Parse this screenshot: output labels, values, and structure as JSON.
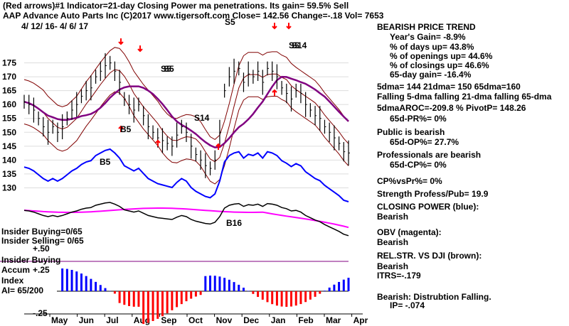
{
  "header": {
    "line1": "(Red arrows)#1 Indicator=21-day Closing Power ma penetrations. Its gain= 59.5% Sell",
    "line2": "AAP Advance Auto Parts Inc (C)2017 www.tigersoft.com Close= 142.56 Change=-.18 Vol= 7653",
    "line3": "4/ 12/ 16- 4/ 6/ 17"
  },
  "insider": {
    "buying_lbl": "Insider Buying=0/65",
    "selling_lbl": "Insider Selling= 0/65",
    "plus50": "+.50",
    "buying2": "Insider Buying",
    "accum": "Accum",
    "plus25": "+.25",
    "index": "Index",
    "ai": "AI= 65/200",
    "minus25": "-.25"
  },
  "panel": {
    "bearish_title": "BEARISH PRICE TREND",
    "years_gain": "Year's Gain= -8.9%",
    "days_up": "% of days up= 43.8%",
    "openings_up": "% of openings up= 44.6%",
    "closings_up": "% of closings up= 46.6%",
    "gain65": "65-day gain= -16.4%",
    "dma": "5dma= 144 21dma= 150 65dma=160",
    "falling": "Falling 5-dma falling 21-dma falling 65-dma",
    "aroc": "5dmaAROC=-209.8 % PivotP= 148.26",
    "pr65": "65d-PR%= 0%",
    "public": "Public is bearish",
    "op65": "65d-OP%= 27.7%",
    "professionals": "Professionals are bearish",
    "cp65": "65d-CP%= 0%",
    "cpvspr": "CP%vsPr%= 0%",
    "strength": "Strength Profess/Pub= 19.9",
    "cp_label": "CLOSING POWER (blue):",
    "cp_val": "Bearish",
    "obv_label": "OBV (magenta):",
    "obv_val": "Bearish",
    "relstr_label": "REL.STR. VS DJI (brown):",
    "relstr_val": "Bearish",
    "itrs": "ITRS=-.179",
    "dist": "Bearish: Distrubtion Falling.",
    "ip": "IP= -.074"
  },
  "chart_data": {
    "type": "line",
    "title": "AAP Advance Auto Parts Inc",
    "ylim": [
      125,
      180
    ],
    "y_ticks": [
      "175",
      "170",
      "165",
      "160",
      "155",
      "150",
      "145",
      "140",
      "135",
      "130"
    ],
    "months": [
      "May",
      "Jun",
      "Jul",
      "Aug",
      "Sep",
      "Oct",
      "Nov",
      "Dec",
      "Jan",
      "Feb",
      "Mar",
      "Apr"
    ],
    "price_close": [
      161,
      160,
      158,
      155,
      152,
      150,
      152,
      150,
      152,
      155,
      158,
      160,
      163,
      165,
      166,
      170,
      172,
      174,
      175,
      172,
      168,
      162,
      160,
      158,
      160,
      156,
      152,
      150,
      148,
      147,
      146,
      145,
      149,
      152,
      150,
      145,
      142,
      140,
      138,
      137,
      140,
      150,
      165,
      170,
      172,
      173,
      168,
      171,
      170,
      172,
      168,
      173,
      172,
      170,
      166,
      164,
      162,
      165,
      164,
      160,
      158,
      156,
      155,
      152,
      150,
      148,
      146,
      143,
      142.56
    ],
    "signals": [
      "S5",
      "B5",
      "S5",
      "S14",
      "B5",
      "S5",
      "B16",
      "S5",
      "S14"
    ],
    "closing_power": "falling",
    "obv": "falling",
    "rel_str": "falling",
    "accum_index_ai": "65/200",
    "close": 142.56
  },
  "colors": {
    "price": "#000000",
    "band": "#800000",
    "ma65": "#800080",
    "closing_power": "#0000ff",
    "obv": "#ff00ff",
    "rel_str": "#000000",
    "accum_pos": "#0000ff",
    "accum_neg": "#ff0000",
    "arrow": "#ff0000",
    "signal": "#000000"
  }
}
